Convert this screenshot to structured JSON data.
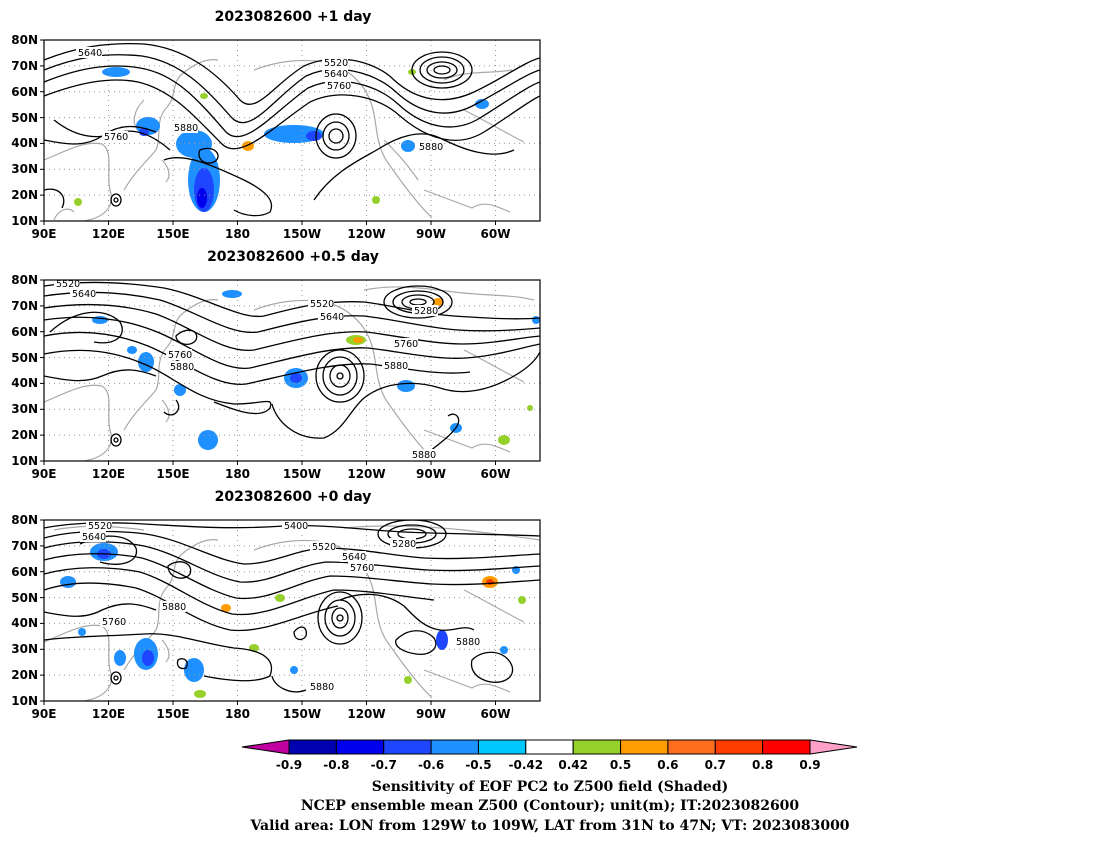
{
  "panels": [
    {
      "title": "2023082600  +1  day",
      "contour_labels": [
        "5640",
        "5520",
        "5640",
        "5760",
        "5760",
        "5880",
        "5880"
      ]
    },
    {
      "title": "2023082600  +0.5  day",
      "contour_labels": [
        "5520",
        "5640",
        "5520",
        "5640",
        "5280",
        "5760",
        "5880",
        "5760",
        "5880",
        "5880"
      ]
    },
    {
      "title": "2023082600  +0  day",
      "contour_labels": [
        "5520",
        "5640",
        "5400",
        "5520",
        "5640",
        "5760",
        "5280",
        "5880",
        "5760",
        "5880",
        "5880"
      ]
    }
  ],
  "lat_labels": [
    "80N",
    "70N",
    "60N",
    "50N",
    "40N",
    "30N",
    "20N",
    "10N"
  ],
  "lon_labels": [
    "90E",
    "120E",
    "150E",
    "180",
    "150W",
    "120W",
    "90W",
    "60W"
  ],
  "colorbar": {
    "ticks": [
      "-0.9",
      "-0.8",
      "-0.7",
      "-0.6",
      "-0.5",
      "-0.42",
      "0.42",
      "0.5",
      "0.6",
      "0.7",
      "0.8",
      "0.9"
    ],
    "colors": [
      "#0000b0",
      "#0000ee",
      "#1e46ff",
      "#1e90ff",
      "#00c8ff",
      "#ffffff",
      "#96d02a",
      "#ff9c00",
      "#ff6e1e",
      "#ff3c00",
      "#ff0000"
    ],
    "low_end_color": "#c000a0",
    "high_end_color": "#ffa0c8"
  },
  "caption": [
    "Sensitivity of EOF PC2 to Z500 field (Shaded)",
    "NCEP ensemble mean Z500 (Contour); unit(m); IT:2023082600",
    "Valid area: LON from 129W to 109W, LAT from 31N to 47N; VT: 2023083000"
  ]
}
